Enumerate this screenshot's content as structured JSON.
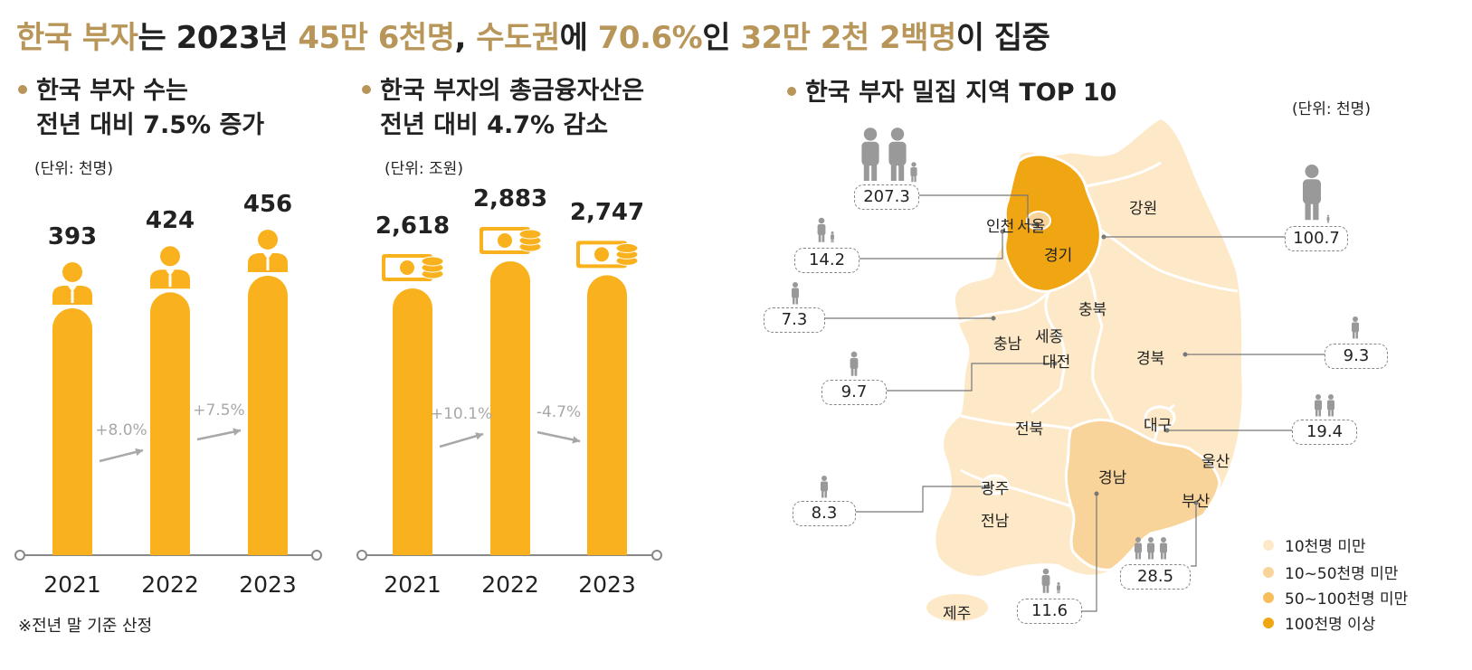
{
  "headline": {
    "parts": [
      {
        "text": "한국 부자",
        "hl": true
      },
      {
        "text": "는 2023년 ",
        "hl": false
      },
      {
        "text": "45만 6천명",
        "hl": true
      },
      {
        "text": ", ",
        "hl": false
      },
      {
        "text": "수도권",
        "hl": true
      },
      {
        "text": "에 ",
        "hl": false
      },
      {
        "text": "70.6%",
        "hl": true
      },
      {
        "text": "인 ",
        "hl": false
      },
      {
        "text": "32만 2천 2백명",
        "hl": true
      },
      {
        "text": "이 집중",
        "hl": false
      }
    ]
  },
  "colors": {
    "accent": "#b8965a",
    "bar": "#f9b21d",
    "arrow": "#a8a8a8",
    "lvl1": "#fde9c8",
    "lvl2": "#f9d49a",
    "lvl3": "#f6bf5c",
    "lvl4": "#f0a512"
  },
  "chart_data": [
    {
      "type": "bar",
      "title_line1": "한국 부자 수는",
      "title_line2": "전년 대비 7.5% 증가",
      "unit": "(단위: 천명)",
      "categories": [
        "2021",
        "2022",
        "2023"
      ],
      "values": [
        393,
        424,
        456
      ],
      "value_labels": [
        "393",
        "424",
        "456"
      ],
      "changes": [
        "+8.0%",
        "+7.5%"
      ],
      "icon": "person-icon"
    },
    {
      "type": "bar",
      "title_line1": "한국 부자의 총금융자산은",
      "title_line2": "전년 대비 4.7% 감소",
      "unit": "(단위: 조원)",
      "categories": [
        "2021",
        "2022",
        "2023"
      ],
      "values": [
        2618,
        2883,
        2747
      ],
      "value_labels": [
        "2,618",
        "2,883",
        "2,747"
      ],
      "changes": [
        "+10.1%",
        "-4.7%"
      ],
      "icon": "money-icon"
    }
  ],
  "map": {
    "title": "한국 부자 밀집 지역 TOP 10",
    "unit": "(단위: 천명)",
    "regions": [
      "강원",
      "인천",
      "서울",
      "경기",
      "충북",
      "충남",
      "세종",
      "대전",
      "경북",
      "전북",
      "대구",
      "울산",
      "경남",
      "광주",
      "부산",
      "전남",
      "제주"
    ],
    "top10": [
      {
        "region": "서울",
        "value": "207.3"
      },
      {
        "region": "경기",
        "value": "100.7"
      },
      {
        "region": "인천",
        "value": "14.2"
      },
      {
        "region": "충남",
        "value": "7.3"
      },
      {
        "region": "대전",
        "value": "9.7"
      },
      {
        "region": "경북",
        "value": "9.3"
      },
      {
        "region": "대구",
        "value": "19.4"
      },
      {
        "region": "광주",
        "value": "8.3"
      },
      {
        "region": "부산",
        "value": "28.5"
      },
      {
        "region": "경남",
        "value": "11.6"
      }
    ],
    "legend": [
      "10천명 미만",
      "10~50천명 미만",
      "50~100천명 미만",
      "100천명 이상"
    ]
  },
  "footnote": "※전년 말 기준 산정"
}
